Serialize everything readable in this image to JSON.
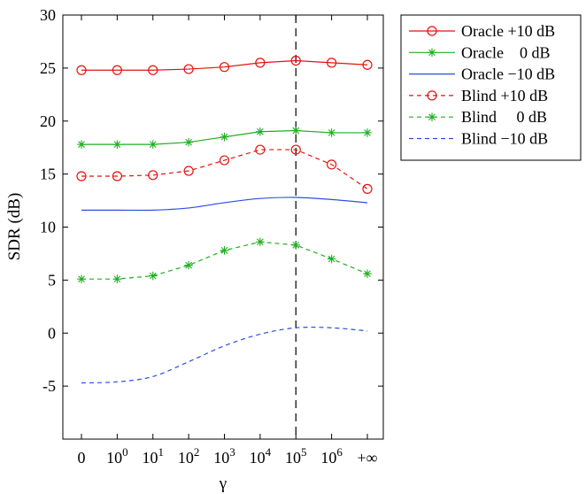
{
  "chart_data": {
    "type": "line",
    "xlabel": "γ",
    "ylabel": "SDR (dB)",
    "ylim": [
      -10,
      30
    ],
    "yticks": [
      -5,
      0,
      5,
      10,
      15,
      20,
      25,
      30
    ],
    "categories": [
      {
        "base": "0",
        "exp": ""
      },
      {
        "base": "10",
        "exp": "0"
      },
      {
        "base": "10",
        "exp": "1"
      },
      {
        "base": "10",
        "exp": "2"
      },
      {
        "base": "10",
        "exp": "3"
      },
      {
        "base": "10",
        "exp": "4"
      },
      {
        "base": "10",
        "exp": "5"
      },
      {
        "base": "10",
        "exp": "6"
      },
      {
        "base": "+∞",
        "exp": ""
      }
    ],
    "vline_category_index": 6,
    "grid": false,
    "legend_position": "outside-top-right",
    "series": [
      {
        "name": "Oracle +10 dB",
        "color": "#e8120c",
        "dash": "solid",
        "marker": "circle",
        "values": [
          24.8,
          24.8,
          24.8,
          24.9,
          25.1,
          25.5,
          25.7,
          25.5,
          25.3
        ]
      },
      {
        "name": "Oracle    0 dB",
        "color": "#1faf1f",
        "dash": "solid",
        "marker": "star",
        "values": [
          17.8,
          17.8,
          17.8,
          18.0,
          18.5,
          19.0,
          19.1,
          18.9,
          18.9
        ]
      },
      {
        "name": "Oracle −10 dB",
        "color": "#2b4fe0",
        "dash": "solid",
        "marker": "none",
        "values": [
          11.6,
          11.6,
          11.6,
          11.8,
          12.3,
          12.7,
          12.8,
          12.6,
          12.3
        ]
      },
      {
        "name": "Blind +10 dB",
        "color": "#e8120c",
        "dash": "dashed",
        "marker": "circle",
        "values": [
          14.8,
          14.8,
          14.9,
          15.3,
          16.3,
          17.3,
          17.3,
          15.9,
          13.6
        ]
      },
      {
        "name": "Blind     0 dB",
        "color": "#1faf1f",
        "dash": "dashed",
        "marker": "star",
        "values": [
          5.1,
          5.1,
          5.4,
          6.4,
          7.8,
          8.6,
          8.3,
          7.0,
          5.6
        ]
      },
      {
        "name": "Blind −10 dB",
        "color": "#2b4fe0",
        "dash": "dashed",
        "marker": "none",
        "values": [
          -4.7,
          -4.6,
          -4.1,
          -2.7,
          -1.2,
          -0.1,
          0.5,
          0.5,
          0.2
        ]
      }
    ]
  }
}
